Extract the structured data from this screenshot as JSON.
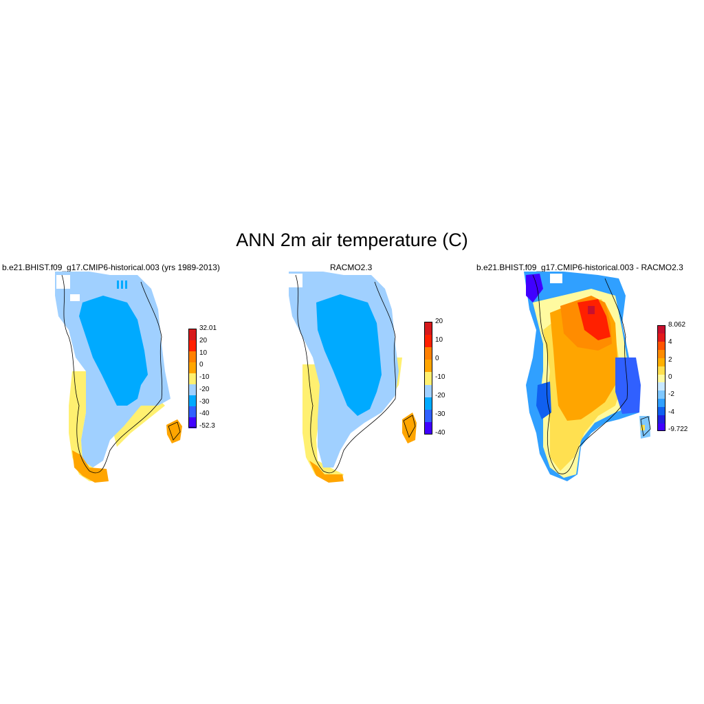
{
  "figure": {
    "title": "ANN 2m air temperature (C)"
  },
  "panels": [
    {
      "id": "model",
      "title": "b.e21.BHIST.f09_g17.CMIP6-historical.003 (yrs 1989-2013)",
      "colorbar": {
        "colors": [
          "#d7191c",
          "#ff2000",
          "#ff8000",
          "#ffa500",
          "#fff070",
          "#a0d0ff",
          "#00aaff",
          "#3060ff",
          "#4000ff"
        ],
        "labels": [
          "32.01",
          "20",
          "10",
          "0",
          "-10",
          "-20",
          "-30",
          "-40",
          "-52.3"
        ]
      }
    },
    {
      "id": "racmo",
      "title": "RACMO2.3",
      "colorbar": {
        "colors": [
          "#d7191c",
          "#ff2000",
          "#ff8000",
          "#ffa500",
          "#fff070",
          "#a0d0ff",
          "#00aaff",
          "#3060ff",
          "#4000ff"
        ],
        "labels": [
          "20",
          "10",
          "0",
          "-10",
          "-20",
          "-30",
          "-40"
        ]
      }
    },
    {
      "id": "diff",
      "title": "b.e21.BHIST.f09_g17.CMIP6-historical.003 - RACMO2.3",
      "colorbar": {
        "colors": [
          "#c8102e",
          "#e31a1c",
          "#ff5500",
          "#ff8c00",
          "#ffb000",
          "#ffe050",
          "#fffaa0",
          "#c8e8ff",
          "#7fc8ff",
          "#30a0ff",
          "#1060f0",
          "#2020e0",
          "#4000ff"
        ],
        "labels": [
          "8.062",
          "4",
          "2",
          "0",
          "-2",
          "-4",
          "-9.722"
        ]
      }
    }
  ]
}
